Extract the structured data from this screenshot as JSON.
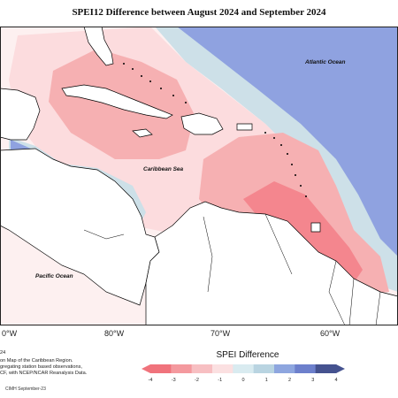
{
  "title": "SPEI12 Difference between August 2024 and September 2024",
  "labels": {
    "atlantic": "Atlantic Ocean",
    "caribbean": "Caribbean Sea",
    "pacific": "Pacific Ocean"
  },
  "longitudes": [
    "0°W",
    "80°W",
    "70°W",
    "60°W"
  ],
  "credits": {
    "year": "24",
    "lines": [
      "on Map of the Caribbean Region.",
      "gregating station based observations,",
      "CF, with NCEP/NCAR Reanalysis Data."
    ],
    "footer": "CIMH September-23"
  },
  "legend": {
    "title": "SPEI Difference",
    "ticks": [
      "-4",
      "-3",
      "-2",
      "-1",
      "0",
      "1",
      "2",
      "3",
      "4"
    ],
    "colors": [
      "#f0737c",
      "#f4999e",
      "#f7bfc2",
      "#fbe0e1",
      "#d9ebf0",
      "#b9d4e1",
      "#8ea6df",
      "#6d80cc",
      "#45528f"
    ]
  },
  "colors": {
    "strong_negative": "#f4868e",
    "negative": "#f6b0b2",
    "weak_negative": "#fcdcde",
    "near_zero": "#fdf0f0",
    "weak_positive": "#cde0e8",
    "positive": "#8fa2e0",
    "strong_positive": "#485c95",
    "land": "#ffffff"
  }
}
